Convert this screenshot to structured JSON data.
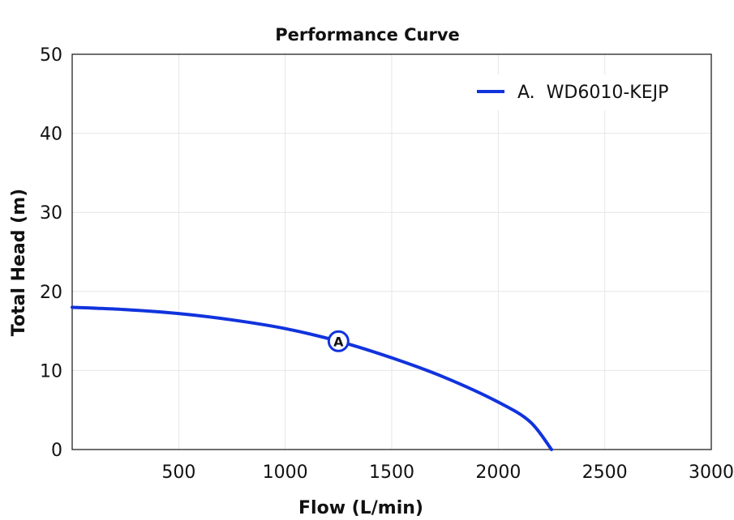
{
  "chart_data": {
    "type": "line",
    "title": "Performance Curve",
    "xlabel": "Flow (L/min)",
    "ylabel": "Total Head (m)",
    "xlim": [
      0,
      3000
    ],
    "ylim": [
      0,
      50
    ],
    "x_ticks": [
      500,
      1000,
      1500,
      2000,
      2500,
      3000
    ],
    "y_ticks": [
      0,
      10,
      20,
      30,
      40,
      50
    ],
    "grid": true,
    "legend_position": "top-right",
    "series_color": "#1133dd",
    "series": [
      {
        "name": "A.  WD6010-KEJP",
        "marker_label": "A",
        "marker_point": [
          1250,
          13.7
        ],
        "points": [
          [
            0,
            18.0
          ],
          [
            250,
            17.7
          ],
          [
            500,
            17.2
          ],
          [
            750,
            16.4
          ],
          [
            1000,
            15.3
          ],
          [
            1250,
            13.7
          ],
          [
            1500,
            11.6
          ],
          [
            1750,
            9.1
          ],
          [
            2000,
            6.0
          ],
          [
            2150,
            3.5
          ],
          [
            2250,
            0.0
          ]
        ]
      }
    ]
  }
}
